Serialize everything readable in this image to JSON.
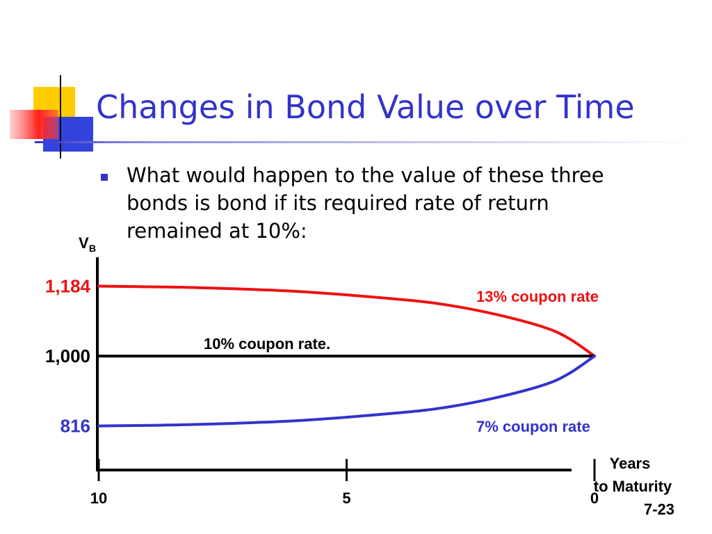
{
  "title": "Changes in Bond Value over Time",
  "bullet": [
    "What would happen to the value of these three",
    "bonds is bond if its required rate of return",
    "remained at 10%:"
  ],
  "slide_number": "7-23",
  "chart_data": {
    "type": "line",
    "ylabel": "V",
    "ylabel_subscript": "B",
    "xlabel": [
      "Years",
      "to Maturity"
    ],
    "x": [
      10,
      8,
      6,
      4,
      3,
      2,
      1,
      0.5,
      0
    ],
    "series": [
      {
        "name": "13% coupon rate",
        "color": "#ee1111",
        "values": [
          1184,
          1180,
          1170,
          1150,
          1135,
          1110,
          1075,
          1045,
          1000
        ]
      },
      {
        "name": "10% coupon rate.",
        "color": "#000000",
        "values": [
          1000,
          1000,
          1000,
          1000,
          1000,
          1000,
          1000,
          1000,
          1000
        ]
      },
      {
        "name": "7% coupon rate",
        "color": "#3333cc",
        "values": [
          816,
          820,
          830,
          850,
          865,
          890,
          925,
          955,
          1000
        ]
      }
    ],
    "xlim": [
      10,
      0
    ],
    "xticks": [
      10,
      5,
      0
    ],
    "ylim": [
      700,
      1260
    ],
    "yticks": [
      {
        "value": 816,
        "label": "816",
        "color": "#3333cc"
      },
      {
        "value": 1000,
        "label": "1,000",
        "color": "#000000"
      },
      {
        "value": 1184,
        "label": "1,184",
        "color": "#ee1111"
      }
    ]
  }
}
